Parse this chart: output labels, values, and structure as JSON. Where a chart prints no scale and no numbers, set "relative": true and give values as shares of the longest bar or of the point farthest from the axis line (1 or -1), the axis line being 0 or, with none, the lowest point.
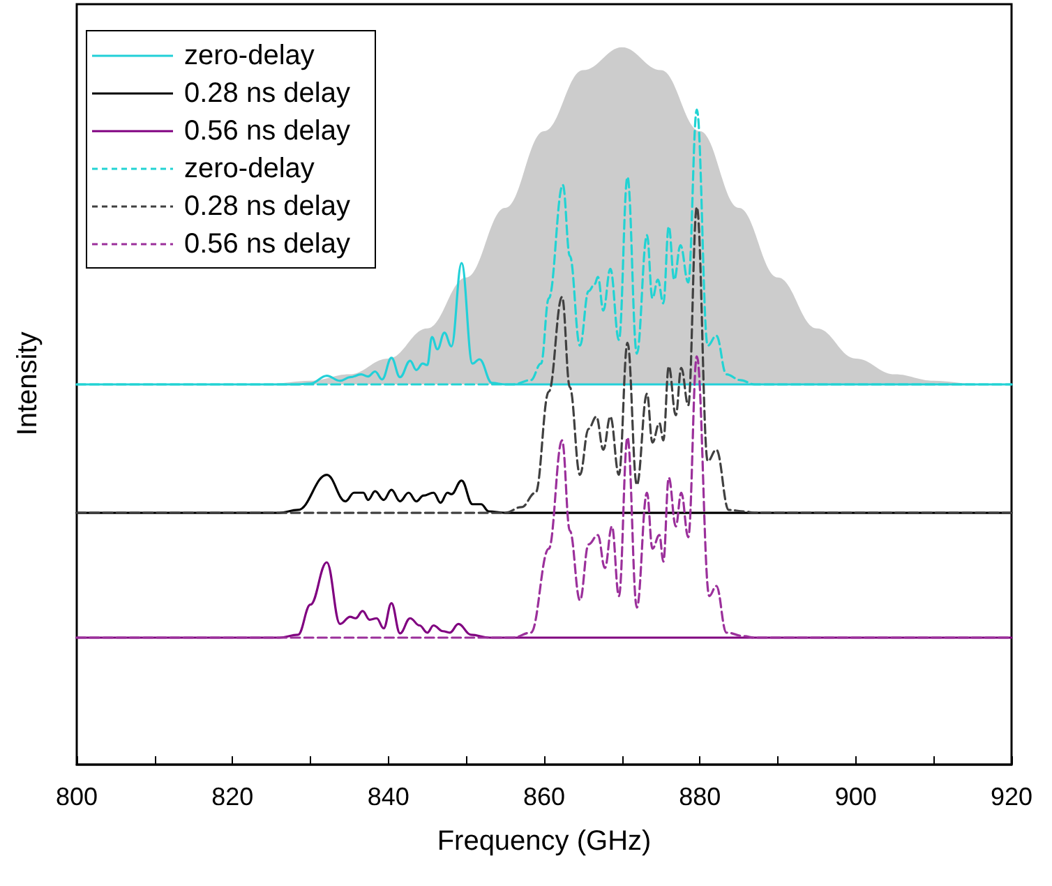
{
  "chart_data": {
    "type": "line",
    "relative": true,
    "xlabel": "Frequency (GHz)",
    "ylabel": "Intensity",
    "legend": "top left",
    "grid": false,
    "marker": "none",
    "xlim": [
      800,
      920
    ],
    "xticks": [
      800,
      {
        "value": 810,
        "label": null
      },
      820,
      {
        "value": 830,
        "label": null
      },
      840,
      {
        "value": 850,
        "label": null
      },
      860,
      {
        "value": 870,
        "label": null
      },
      880,
      {
        "value": 890,
        "label": null
      },
      900,
      {
        "value": 910,
        "label": null
      },
      920
    ],
    "series": [
      {
        "type": "area",
        "color": "#cccccc",
        "x": [
          800,
          820,
          825,
          830,
          835,
          840,
          845,
          850,
          855,
          860,
          865,
          870,
          875,
          880,
          885,
          890,
          895,
          900,
          905,
          910,
          915,
          920
        ],
        "values": [
          0.53,
          0.53,
          0.531,
          0.535,
          0.544,
          0.566,
          0.608,
          0.679,
          0.776,
          0.883,
          0.968,
          1.0,
          0.968,
          0.883,
          0.776,
          0.679,
          0.608,
          0.566,
          0.544,
          0.535,
          0.531,
          0.53
        ]
      },
      {
        "name": "zero-delay",
        "color": "#22d0d8",
        "line_style": "solid",
        "x": [
          800,
          828,
          830,
          832.1,
          833.8,
          835.1,
          836.5,
          837.4,
          838.3,
          839.2,
          840.4,
          841.5,
          842.8,
          843.6,
          844.4,
          845.0,
          845.6,
          846.3,
          847.2,
          848.1,
          849.4,
          850.8,
          851.7,
          853.3,
          855,
          920
        ],
        "values": [
          0.53,
          0.53,
          0.531,
          0.542,
          0.535,
          0.54,
          0.544,
          0.541,
          0.548,
          0.537,
          0.567,
          0.54,
          0.563,
          0.55,
          0.559,
          0.557,
          0.596,
          0.579,
          0.602,
          0.583,
          0.699,
          0.559,
          0.565,
          0.532,
          0.53,
          0.53
        ]
      },
      {
        "name": "0.28 ns delay",
        "color": "#000000",
        "line_style": "solid",
        "x": [
          800,
          826,
          828.4,
          832.1,
          834.5,
          835.6,
          836.8,
          837.4,
          838.3,
          839.4,
          840.4,
          841.5,
          842.6,
          843.6,
          844.5,
          845.8,
          846.7,
          847.6,
          848.1,
          849.4,
          850.8,
          851.9,
          852.9,
          855,
          920
        ],
        "values": [
          0.351,
          0.351,
          0.355,
          0.404,
          0.367,
          0.379,
          0.379,
          0.369,
          0.381,
          0.369,
          0.383,
          0.367,
          0.379,
          0.367,
          0.375,
          0.379,
          0.365,
          0.379,
          0.377,
          0.396,
          0.363,
          0.363,
          0.353,
          0.351,
          0.351
        ]
      },
      {
        "name": "0.56 ns delay",
        "color": "#800080",
        "line_style": "solid",
        "x": [
          800,
          826,
          828.4,
          830,
          832.1,
          833.8,
          835.1,
          835.8,
          836.7,
          837.6,
          838.5,
          839.4,
          840.4,
          841.5,
          842.8,
          844,
          845,
          845.8,
          847,
          847.9,
          849,
          850.6,
          853,
          920
        ],
        "values": [
          0.177,
          0.177,
          0.181,
          0.223,
          0.282,
          0.196,
          0.206,
          0.204,
          0.214,
          0.202,
          0.204,
          0.19,
          0.225,
          0.183,
          0.204,
          0.194,
          0.184,
          0.194,
          0.186,
          0.184,
          0.196,
          0.181,
          0.177,
          0.177
        ]
      },
      {
        "name": "zero-delay",
        "color": "#22d3d3",
        "line_style": "dashed",
        "x": [
          800,
          856,
          858.3,
          859.6,
          860.6,
          862.4,
          863.3,
          864.6,
          865.7,
          866.5,
          866.9,
          867.6,
          868.5,
          869.6,
          870.7,
          871.9,
          873.2,
          873.9,
          874.6,
          875.3,
          876.0,
          876.7,
          877.5,
          878.5,
          879.6,
          881.0,
          882.1,
          883.4,
          885.2,
          887,
          920
        ],
        "values": [
          0.53,
          0.53,
          0.536,
          0.559,
          0.65,
          0.808,
          0.709,
          0.584,
          0.66,
          0.67,
          0.68,
          0.633,
          0.691,
          0.592,
          0.819,
          0.573,
          0.738,
          0.65,
          0.676,
          0.643,
          0.75,
          0.676,
          0.724,
          0.672,
          0.913,
          0.584,
          0.598,
          0.544,
          0.536,
          0.53,
          0.53
        ]
      },
      {
        "name": "0.28 ns delay",
        "color": "#404040",
        "line_style": "dashed",
        "x": [
          800,
          855,
          857.1,
          858.9,
          860.6,
          862.3,
          863.3,
          864.6,
          865.7,
          866.7,
          867.6,
          868.5,
          869.6,
          870.7,
          871.9,
          873.2,
          873.9,
          874.8,
          875.3,
          876.0,
          876.9,
          877.6,
          878.5,
          879.6,
          881.0,
          882.1,
          883.7,
          885.7,
          887,
          920
        ],
        "values": [
          0.351,
          0.351,
          0.359,
          0.379,
          0.52,
          0.652,
          0.526,
          0.404,
          0.468,
          0.485,
          0.439,
          0.485,
          0.404,
          0.588,
          0.39,
          0.517,
          0.449,
          0.476,
          0.452,
          0.555,
          0.487,
          0.553,
          0.501,
          0.777,
          0.423,
          0.439,
          0.355,
          0.353,
          0.351,
          0.351
        ]
      },
      {
        "name": "0.56 ns delay",
        "color": "#9b309b",
        "line_style": "dashed",
        "x": [
          800,
          856,
          858.3,
          860.6,
          862.3,
          863.3,
          864.6,
          865.7,
          866.9,
          867.8,
          868.7,
          869.6,
          870.7,
          871.9,
          873.2,
          873.9,
          874.8,
          875.3,
          876.0,
          876.9,
          877.6,
          878.5,
          879.6,
          881.2,
          882.1,
          883.4,
          885.7,
          887,
          920
        ],
        "values": [
          0.177,
          0.177,
          0.184,
          0.301,
          0.452,
          0.326,
          0.229,
          0.307,
          0.32,
          0.274,
          0.332,
          0.235,
          0.456,
          0.219,
          0.379,
          0.301,
          0.32,
          0.283,
          0.4,
          0.332,
          0.379,
          0.317,
          0.569,
          0.235,
          0.249,
          0.184,
          0.179,
          0.177,
          0.177
        ]
      }
    ]
  }
}
